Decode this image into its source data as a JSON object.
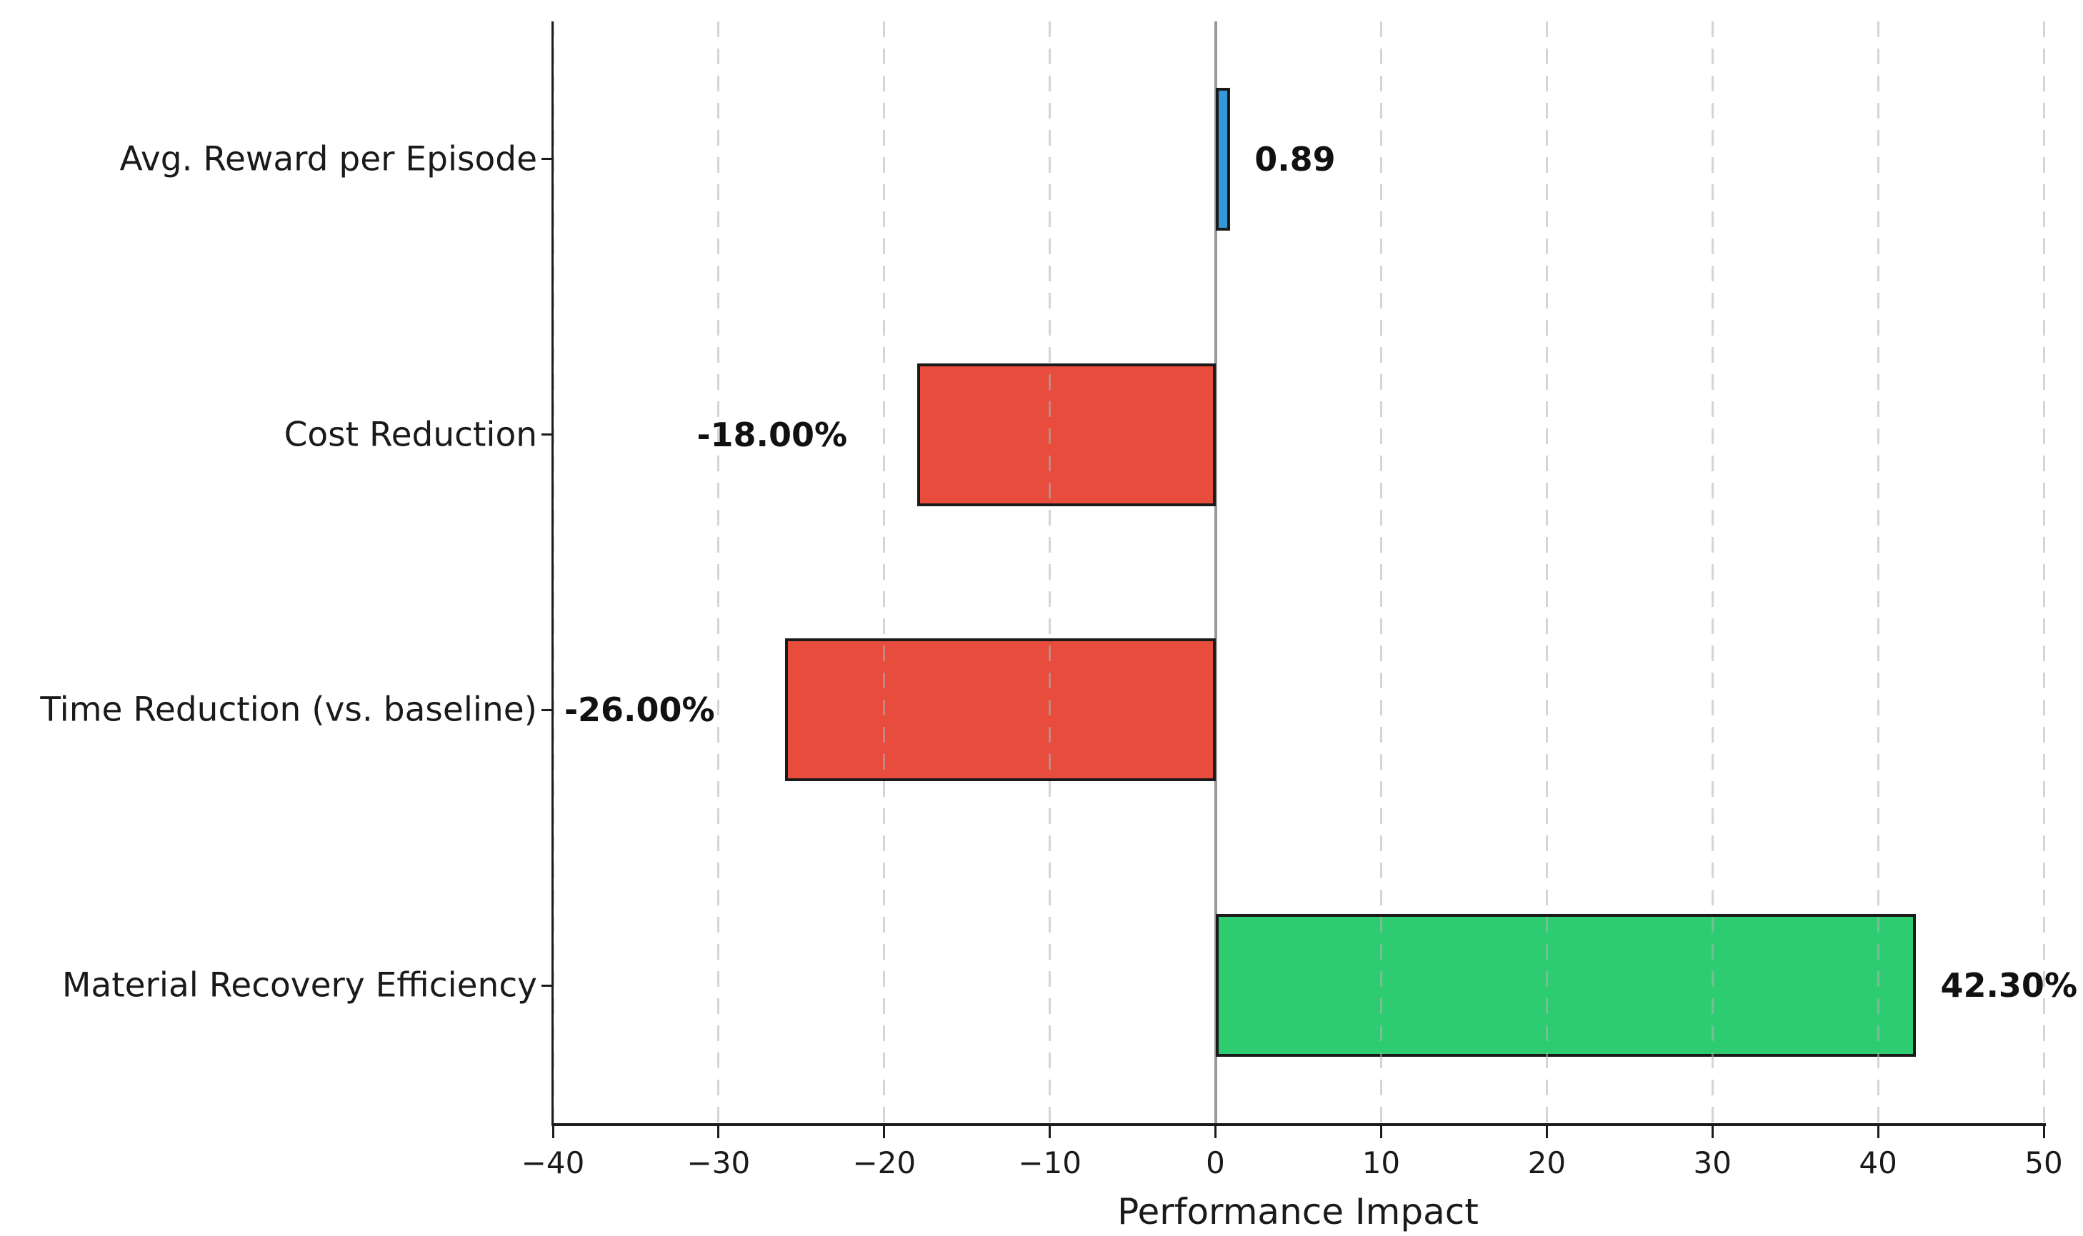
{
  "chart_data": {
    "type": "bar",
    "orientation": "horizontal",
    "xlabel": "Performance Impact",
    "categories": [
      "Avg. Reward per Episode",
      "Cost Reduction",
      "Time Reduction (vs. baseline)",
      "Material Recovery Efficiency"
    ],
    "values": [
      0.89,
      -18.0,
      -26.0,
      42.3
    ],
    "value_labels": [
      "0.89",
      "-18.00%",
      "-26.00%",
      "42.30%"
    ],
    "bar_colors": [
      "#3498db",
      "#e74c3c",
      "#e74c3c",
      "#2ecc71"
    ],
    "bar_edge_color": "#1a1a1a",
    "xlim": [
      -40,
      50
    ],
    "xticks": [
      -40,
      -30,
      -20,
      -10,
      0,
      10,
      20,
      30,
      40,
      50
    ],
    "xtick_labels": [
      "−40",
      "−30",
      "−20",
      "−10",
      "0",
      "10",
      "20",
      "30",
      "40",
      "50"
    ],
    "grid": "x-dashed-over-bars",
    "zero_line_color": "#999999",
    "background": "#ffffff",
    "text_color": "#1a1a1a",
    "legend": "none",
    "title": ""
  }
}
